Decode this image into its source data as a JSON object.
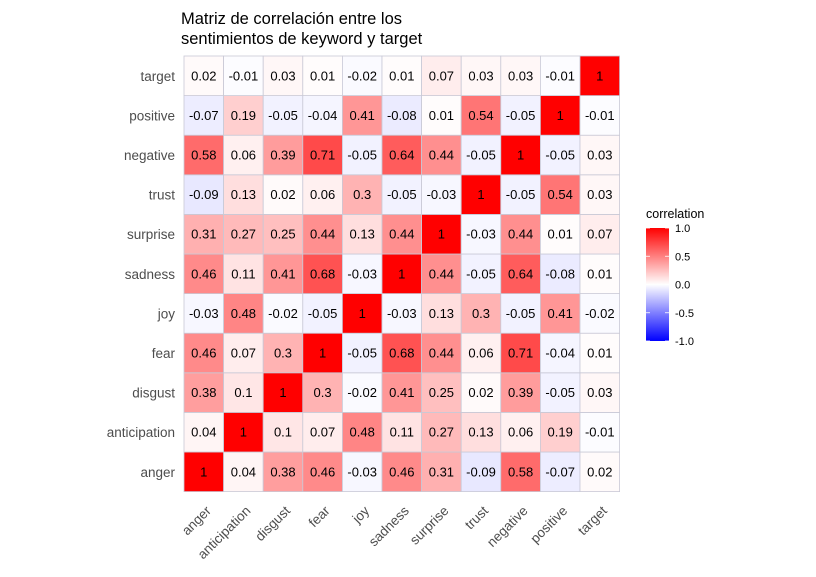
{
  "chart_data": {
    "type": "heatmap",
    "title_lines": [
      "Matriz de correlación entre los",
      "sentimientos de keyword y target"
    ],
    "variables": [
      "anger",
      "anticipation",
      "disgust",
      "fear",
      "joy",
      "sadness",
      "surprise",
      "trust",
      "negative",
      "positive",
      "target"
    ],
    "matrix": [
      [
        1,
        0.04,
        0.38,
        0.46,
        -0.03,
        0.46,
        0.31,
        -0.09,
        0.58,
        -0.07,
        0.02
      ],
      [
        0.04,
        1,
        0.1,
        0.07,
        0.48,
        0.11,
        0.27,
        0.13,
        0.06,
        0.19,
        -0.01
      ],
      [
        0.38,
        0.1,
        1,
        0.3,
        -0.02,
        0.41,
        0.25,
        0.02,
        0.39,
        -0.05,
        0.03
      ],
      [
        0.46,
        0.07,
        0.3,
        1,
        -0.05,
        0.68,
        0.44,
        0.06,
        0.71,
        -0.04,
        0.01
      ],
      [
        -0.03,
        0.48,
        -0.02,
        -0.05,
        1,
        -0.03,
        0.13,
        0.3,
        -0.05,
        0.41,
        -0.02
      ],
      [
        0.46,
        0.11,
        0.41,
        0.68,
        -0.03,
        1,
        0.44,
        -0.05,
        0.64,
        -0.08,
        0.01
      ],
      [
        0.31,
        0.27,
        0.25,
        0.44,
        0.13,
        0.44,
        1,
        -0.03,
        0.44,
        0.01,
        0.07
      ],
      [
        -0.09,
        0.13,
        0.02,
        0.06,
        0.3,
        -0.05,
        -0.03,
        1,
        -0.05,
        0.54,
        0.03
      ],
      [
        0.58,
        0.06,
        0.39,
        0.71,
        -0.05,
        0.64,
        0.44,
        -0.05,
        1,
        -0.05,
        0.03
      ],
      [
        -0.07,
        0.19,
        -0.05,
        -0.04,
        0.41,
        -0.08,
        0.01,
        0.54,
        -0.05,
        1,
        -0.01
      ],
      [
        0.02,
        -0.01,
        0.03,
        0.01,
        -0.02,
        0.01,
        0.07,
        0.03,
        0.03,
        -0.01,
        1
      ]
    ],
    "legend": {
      "title": "correlation",
      "ticks": [
        1.0,
        0.5,
        0.0,
        -0.5,
        -1.0
      ],
      "tick_labels": [
        "1.0",
        "0.5",
        "0.0",
        "-0.5",
        "-1.0"
      ],
      "colors": {
        "low": "#0000ff",
        "mid": "#ffffff",
        "high": "#ff0000"
      },
      "limits": [
        -1,
        1
      ]
    },
    "grid_color": "#c9c9d6"
  }
}
